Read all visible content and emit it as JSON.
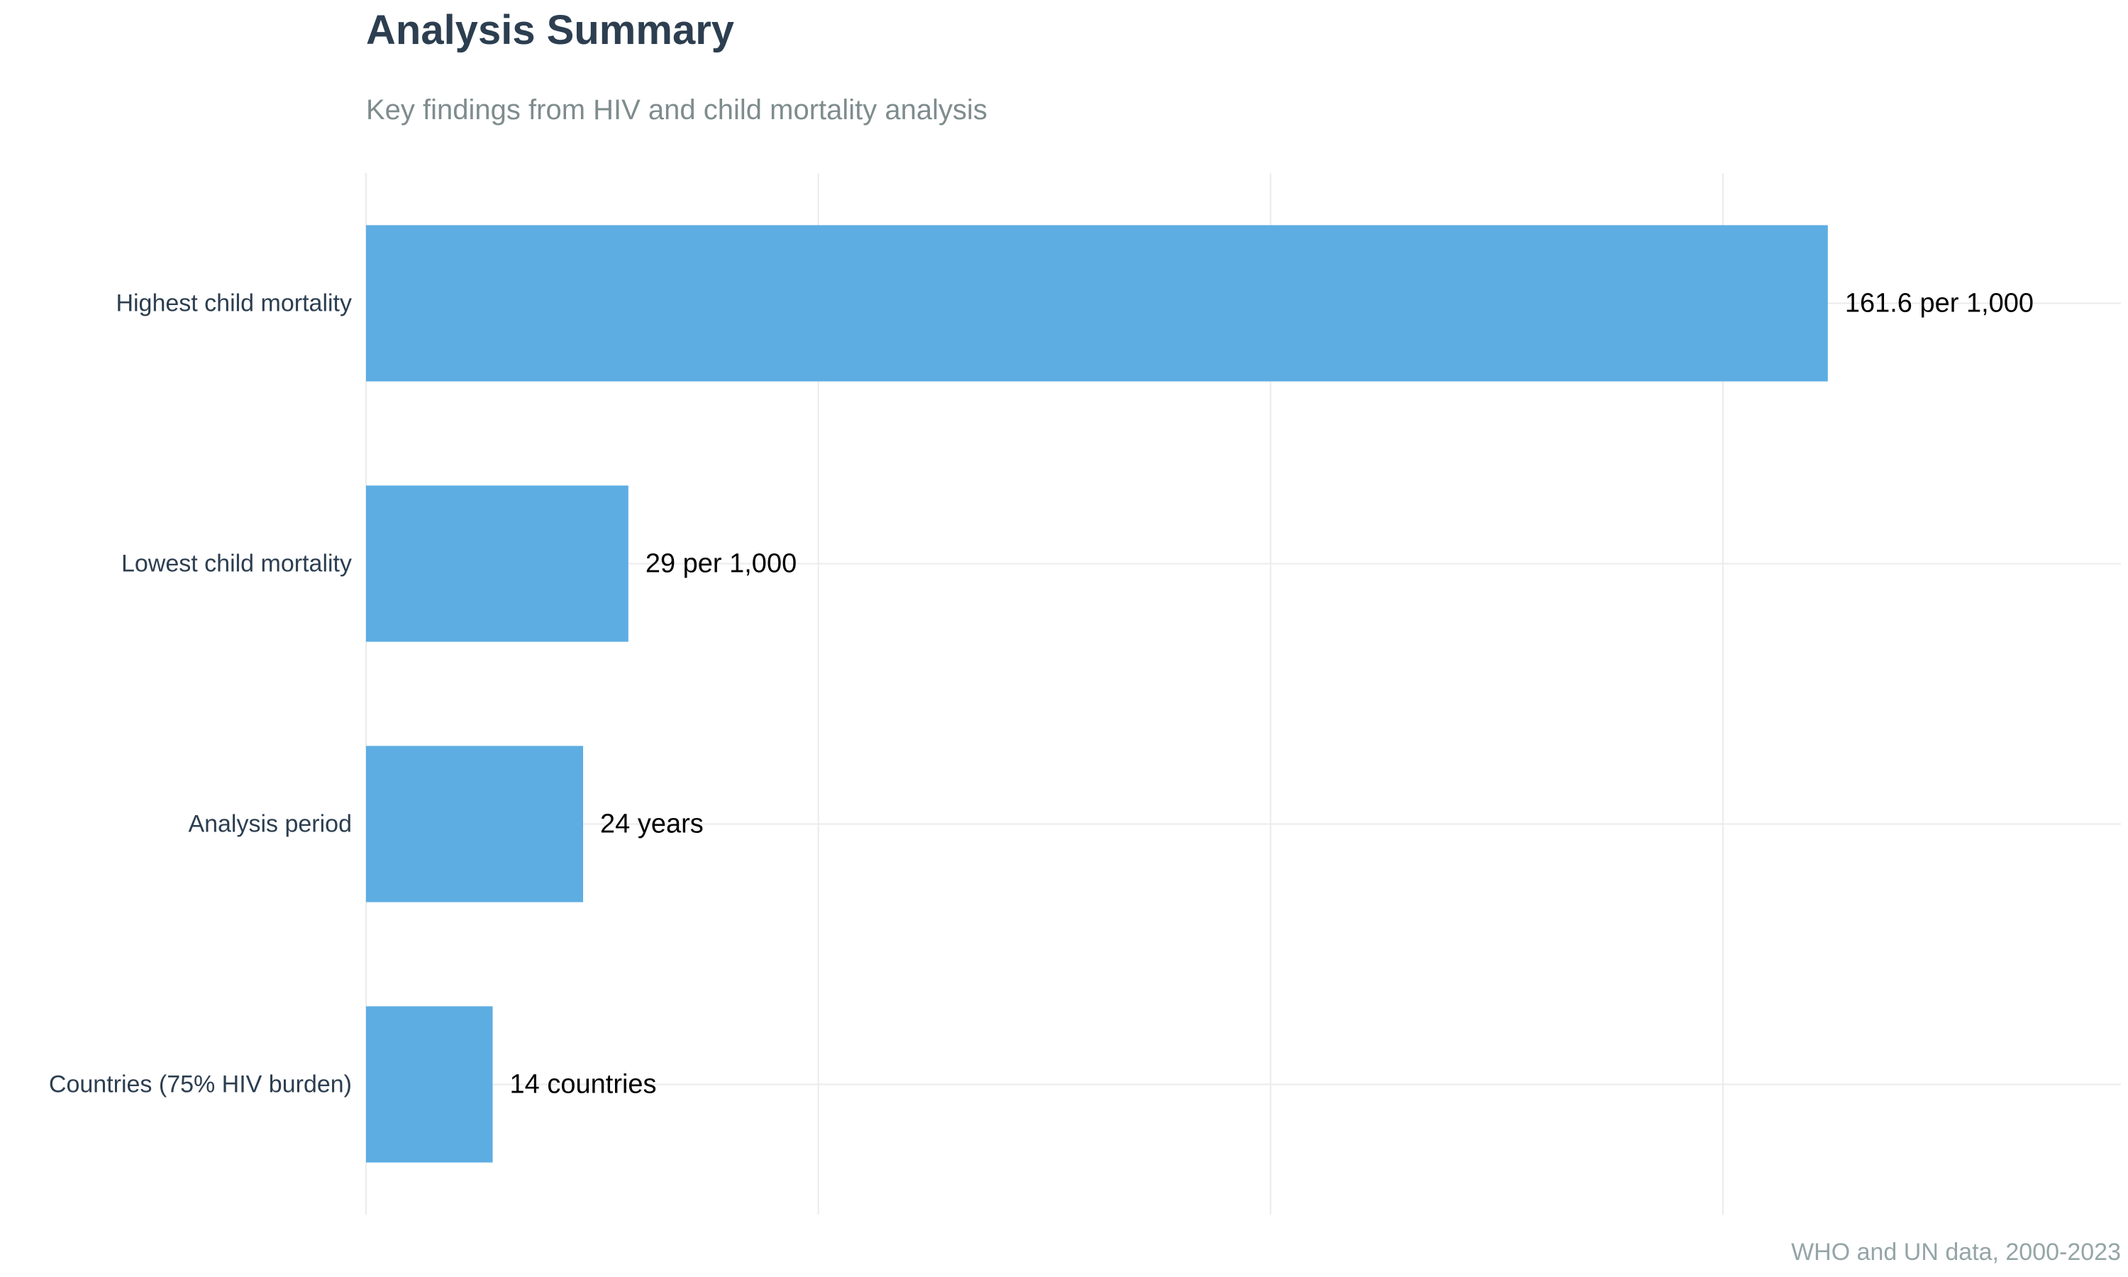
{
  "chart_data": {
    "type": "bar",
    "orientation": "horizontal",
    "title": "Analysis Summary",
    "subtitle": "Key findings from HIV and child mortality analysis",
    "caption": "WHO and UN data, 2000-2023",
    "categories": [
      "Highest child mortality",
      "Lowest child mortality",
      "Analysis period",
      "Countries (75% HIV burden)"
    ],
    "values": [
      161.6,
      29,
      24,
      14
    ],
    "value_labels": [
      "161.6 per 1,000",
      "29 per 1,000",
      "24 years",
      "14 countries"
    ],
    "xlim": [
      0,
      194
    ],
    "x_gridlines": [
      0,
      50,
      100,
      150
    ],
    "bar_color": "#5dade2",
    "grid": true,
    "legend": "none",
    "xlabel": "",
    "ylabel": ""
  }
}
